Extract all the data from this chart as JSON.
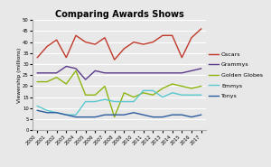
{
  "title": "Comparing Awards Shows",
  "ylabel": "Viewership (millions)",
  "years": [
    2000,
    2001,
    2002,
    2003,
    2004,
    2005,
    2006,
    2007,
    2008,
    2009,
    2010,
    2011,
    2012,
    2013,
    2014,
    2015,
    2016,
    2017
  ],
  "oscars": [
    33,
    38,
    41,
    33,
    43,
    40,
    39,
    42,
    32,
    37,
    40,
    39,
    40,
    43,
    43,
    33,
    42,
    46
  ],
  "grammys": [
    26,
    26,
    26,
    29,
    28,
    23,
    27,
    26,
    26,
    26,
    26,
    26,
    26,
    26,
    26,
    26,
    27,
    28
  ],
  "golden_globes": [
    22,
    22,
    24,
    21,
    27,
    16,
    16,
    20,
    6,
    17,
    15,
    17,
    16,
    19,
    21,
    20,
    19,
    20
  ],
  "emmys": [
    11,
    9,
    8,
    7,
    7,
    13,
    13,
    14,
    13,
    13,
    13,
    18,
    18,
    15,
    17,
    16,
    16,
    16
  ],
  "tonys": [
    9,
    8,
    8,
    7,
    6,
    6,
    6,
    7,
    7,
    7,
    8,
    7,
    6,
    6,
    7,
    7,
    6,
    7
  ],
  "colors": {
    "Oscars": "#c0392b",
    "Grammys": "#5b3a8c",
    "Golden Globes": "#8db510",
    "Emmys": "#5bc8d0",
    "Tonys": "#2c5b9e"
  },
  "ylim": [
    0,
    50
  ],
  "yticks": [
    0,
    5,
    10,
    15,
    20,
    25,
    30,
    35,
    40,
    45,
    50
  ],
  "background_color": "#e8e8e8",
  "grid_color": "#ffffff",
  "title_fontsize": 7,
  "label_fontsize": 4.2,
  "tick_fontsize": 3.8,
  "legend_fontsize": 4.5,
  "linewidth": 1.0
}
